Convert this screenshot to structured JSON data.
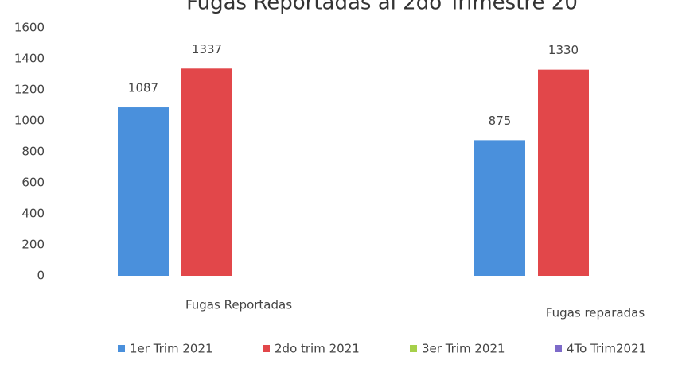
{
  "chart_data": {
    "type": "bar",
    "title": "Fugas Reportadas al 2do Trimestre 20",
    "categories": [
      "Fugas Reportadas",
      "Fugas reparadas"
    ],
    "series": [
      {
        "name": "1er Trim 2021",
        "color": "#4a90dc",
        "values": [
          1087,
          875
        ]
      },
      {
        "name": "2do trim 2021",
        "color": "#e2474a",
        "values": [
          1337,
          1330
        ]
      },
      {
        "name": "3er Trim 2021",
        "color": "#a6d04a",
        "values": [
          null,
          null
        ]
      },
      {
        "name": "4To Trim2021",
        "color": "#7d6ac9",
        "values": [
          null,
          null
        ]
      }
    ],
    "ylim": [
      0,
      1600
    ],
    "yticks": [
      0,
      200,
      400,
      600,
      800,
      1000,
      1200,
      1400,
      1600
    ],
    "grid": false,
    "legend": "bottom"
  }
}
